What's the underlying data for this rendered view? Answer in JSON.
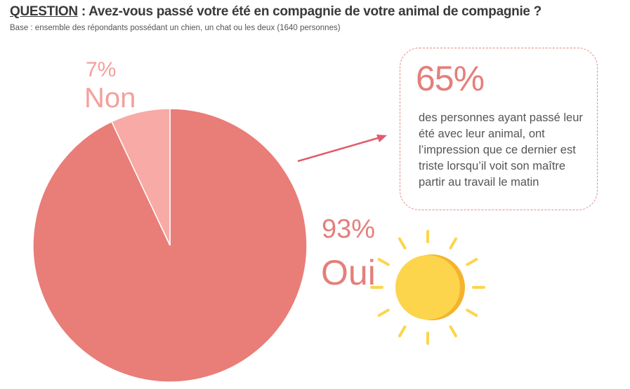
{
  "header": {
    "question_label": "QUESTION",
    "question_text": " :  Avez-vous passé votre été en compagnie de votre animal de compagnie ?",
    "base": "Base : ensemble des répondants possédant un chien, un chat ou les deux (1640 personnes)"
  },
  "callout": {
    "value": "65%",
    "text": "des personnes ayant passé leur été avec leur animal, ont l’impression que ce dernier est triste lorsqu’il voit son maître partir au travail le matin"
  },
  "colors": {
    "oui": "#e97d78",
    "non": "#f7aaa6",
    "sun": "#fcd54d",
    "sun_shade": "#f5b32d",
    "arrow": "#e05c6b"
  },
  "icons": [
    "sun-icon",
    "arrow-icon"
  ],
  "chart_data": {
    "type": "pie",
    "categories": [
      "Oui",
      "Non"
    ],
    "values": [
      93,
      7
    ],
    "labels": [
      "93%",
      "7%"
    ]
  }
}
